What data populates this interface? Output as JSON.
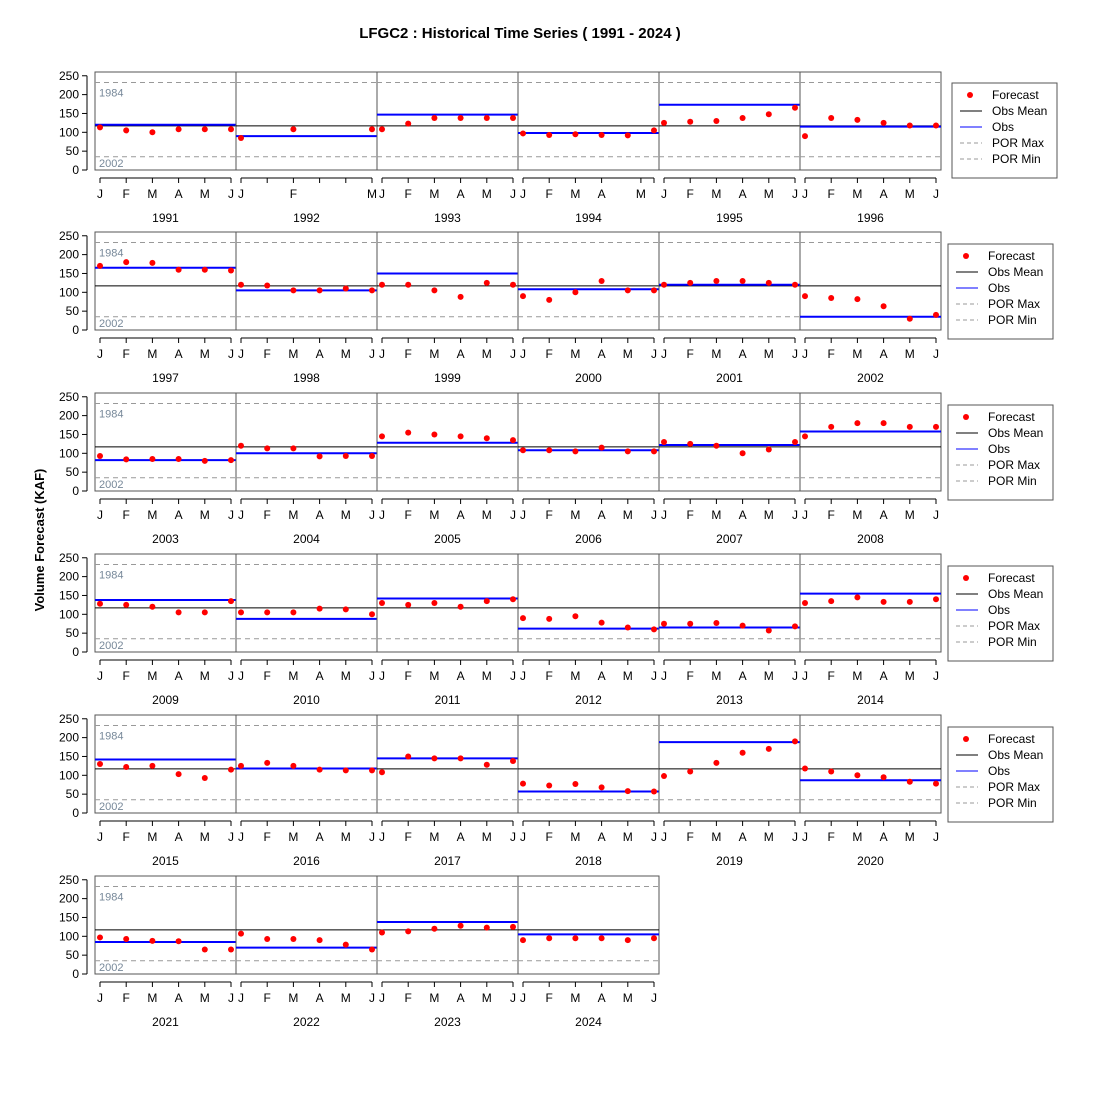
{
  "chart_data": {
    "type": "scatter",
    "title": "LFGC2 : Historical Time Series ( 1991 - 2024 )",
    "ylabel": "Volume Forecast (KAF)",
    "xlabel": "",
    "ylim": [
      0,
      260
    ],
    "yticks": [
      0,
      50,
      100,
      150,
      200,
      250
    ],
    "obs_mean": 117,
    "por_max": 232,
    "por_min": 35,
    "por_max_label": "1984",
    "por_min_label": "2002",
    "colors": {
      "forecast": "#ff0000",
      "obs": "#0000ff",
      "obs_mean": "#000000",
      "por": "#999999"
    },
    "legend": {
      "placement": "right",
      "items": [
        {
          "label": "Forecast",
          "kind": "point",
          "color": "#ff0000"
        },
        {
          "label": "Obs Mean",
          "kind": "line",
          "color": "#000000"
        },
        {
          "label": "Obs",
          "kind": "line",
          "color": "#0000ff"
        },
        {
          "label": "POR Max",
          "kind": "dash",
          "color": "#999999"
        },
        {
          "label": "POR Min",
          "kind": "dash",
          "color": "#999999"
        }
      ]
    },
    "months": [
      "J",
      "F",
      "M",
      "A",
      "M",
      "J"
    ],
    "panels": [
      {
        "year": "1991",
        "obs": 120,
        "forecast": [
          113,
          105,
          100,
          108,
          108,
          108
        ]
      },
      {
        "year": "1992",
        "obs": 90,
        "forecast": [
          85,
          null,
          108,
          null,
          null,
          108
        ],
        "tick_labels": [
          "J",
          "",
          "F",
          "",
          "",
          "M"
        ]
      },
      {
        "year": "1993",
        "obs": 147,
        "forecast": [
          108,
          123,
          138,
          138,
          138,
          138
        ]
      },
      {
        "year": "1994",
        "obs": 98,
        "forecast": [
          97,
          93,
          95,
          93,
          92,
          105
        ],
        "tick_labels": [
          "J",
          "F",
          "M",
          "A",
          "M",
          ""
        ],
        "tick_positions": [
          0,
          1,
          2,
          3,
          4.5,
          5
        ]
      },
      {
        "year": "1995",
        "obs": 173,
        "forecast": [
          125,
          128,
          130,
          138,
          148,
          165
        ]
      },
      {
        "year": "1996",
        "obs": 115,
        "forecast": [
          90,
          138,
          133,
          125,
          118,
          118
        ]
      },
      {
        "year": "1997",
        "obs": 165,
        "forecast": [
          170,
          180,
          178,
          160,
          160,
          158
        ]
      },
      {
        "year": "1998",
        "obs": 105,
        "forecast": [
          120,
          118,
          105,
          105,
          110,
          105
        ]
      },
      {
        "year": "1999",
        "obs": 150,
        "forecast": [
          120,
          120,
          105,
          88,
          125,
          120
        ]
      },
      {
        "year": "2000",
        "obs": 108,
        "forecast": [
          90,
          80,
          100,
          130,
          105,
          105
        ]
      },
      {
        "year": "2001",
        "obs": 120,
        "forecast": [
          120,
          125,
          130,
          130,
          125,
          120
        ]
      },
      {
        "year": "2002",
        "obs": 35,
        "forecast": [
          90,
          85,
          82,
          63,
          30,
          40
        ]
      },
      {
        "year": "2003",
        "obs": 82,
        "forecast": [
          93,
          84,
          85,
          85,
          80,
          82
        ]
      },
      {
        "year": "2004",
        "obs": 100,
        "forecast": [
          120,
          113,
          113,
          92,
          93,
          93
        ]
      },
      {
        "year": "2005",
        "obs": 128,
        "forecast": [
          145,
          155,
          150,
          145,
          140,
          135
        ]
      },
      {
        "year": "2006",
        "obs": 108,
        "forecast": [
          108,
          108,
          105,
          115,
          105,
          105
        ]
      },
      {
        "year": "2007",
        "obs": 122,
        "forecast": [
          130,
          125,
          120,
          100,
          110,
          130
        ]
      },
      {
        "year": "2008",
        "obs": 158,
        "forecast": [
          145,
          170,
          180,
          180,
          170,
          170
        ]
      },
      {
        "year": "2009",
        "obs": 138,
        "forecast": [
          128,
          125,
          120,
          105,
          105,
          135
        ]
      },
      {
        "year": "2010",
        "obs": 88,
        "forecast": [
          105,
          105,
          105,
          115,
          113,
          100
        ]
      },
      {
        "year": "2011",
        "obs": 142,
        "forecast": [
          130,
          125,
          130,
          120,
          135,
          140
        ]
      },
      {
        "year": "2012",
        "obs": 62,
        "forecast": [
          90,
          88,
          95,
          78,
          65,
          60
        ]
      },
      {
        "year": "2013",
        "obs": 65,
        "forecast": [
          75,
          75,
          77,
          70,
          57,
          68
        ]
      },
      {
        "year": "2014",
        "obs": 155,
        "forecast": [
          130,
          135,
          145,
          133,
          133,
          140
        ]
      },
      {
        "year": "2015",
        "obs": 142,
        "forecast": [
          130,
          122,
          125,
          103,
          93,
          115
        ]
      },
      {
        "year": "2016",
        "obs": 118,
        "forecast": [
          125,
          133,
          125,
          115,
          113,
          113
        ]
      },
      {
        "year": "2017",
        "obs": 145,
        "forecast": [
          108,
          150,
          145,
          145,
          128,
          138
        ]
      },
      {
        "year": "2018",
        "obs": 57,
        "forecast": [
          78,
          73,
          77,
          68,
          58,
          57
        ]
      },
      {
        "year": "2019",
        "obs": 188,
        "forecast": [
          98,
          110,
          133,
          160,
          170,
          190
        ]
      },
      {
        "year": "2020",
        "obs": 87,
        "forecast": [
          118,
          110,
          100,
          95,
          83,
          78
        ]
      },
      {
        "year": "2021",
        "obs": 85,
        "forecast": [
          97,
          93,
          88,
          87,
          65,
          65
        ]
      },
      {
        "year": "2022",
        "obs": 70,
        "forecast": [
          107,
          93,
          93,
          90,
          78,
          65
        ]
      },
      {
        "year": "2023",
        "obs": 138,
        "forecast": [
          110,
          113,
          120,
          128,
          123,
          125
        ]
      },
      {
        "year": "2024",
        "obs": 105,
        "forecast": [
          90,
          95,
          95,
          95,
          90,
          95
        ]
      }
    ]
  }
}
